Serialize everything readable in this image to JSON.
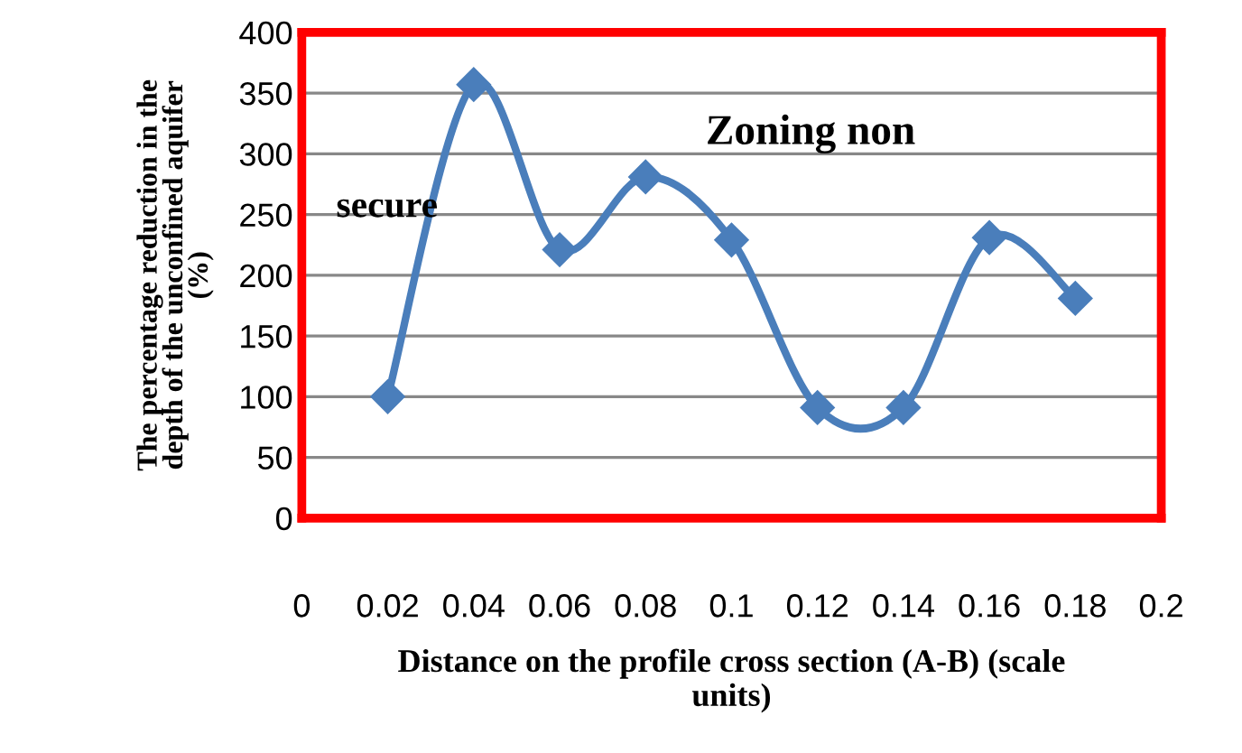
{
  "chart_data": {
    "type": "line",
    "x": [
      0.02,
      0.04,
      0.06,
      0.08,
      0.1,
      0.12,
      0.14,
      0.16,
      0.18
    ],
    "series": [
      {
        "color": "#4a7ebb",
        "values": [
          100,
          357,
          221,
          281,
          229,
          91,
          91,
          231,
          181
        ]
      }
    ],
    "xlabel": "Distance on the profile cross section (A-B) (scale\nunits)",
    "ylabel": "The percentage reduction in the\ndepth of the unconfined aquifer\n(%)",
    "annotations": [
      "Zoning non",
      "secure"
    ],
    "xlim": [
      0,
      0.2
    ],
    "xticks": [
      0,
      0.02,
      0.04,
      0.06,
      0.08,
      0.1,
      0.12,
      0.14,
      0.16,
      0.18,
      0.2
    ],
    "ylim": [
      0,
      400
    ],
    "yticks": [
      0,
      50,
      100,
      150,
      200,
      250,
      300,
      350,
      400
    ],
    "grid": "y",
    "marker": "diamond",
    "line_style": "solid"
  }
}
